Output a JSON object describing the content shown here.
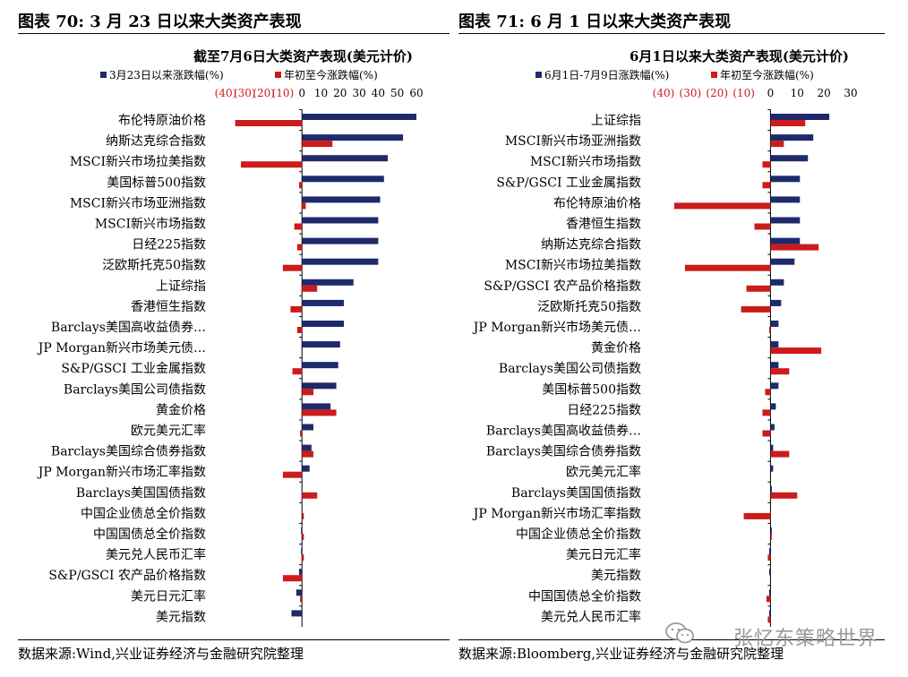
{
  "panels": [
    {
      "figure_title": "图表 70:  3 月 23 日以来大类资产表现",
      "source": "数据来源:Wind,兴业证券经济与金融研究院整理",
      "chart_data": {
        "type": "bar",
        "orientation": "horizontal",
        "title": "截至7月6日大类资产表现(美元计价)",
        "xlim": [
          -40,
          60
        ],
        "xticks": [
          "(40)",
          "(30)",
          "(20)",
          "(10)",
          "0",
          "10",
          "20",
          "30",
          "40",
          "50",
          "60"
        ],
        "colors": {
          "series1": "#1f2a6b",
          "series2": "#cc1b1b",
          "negative_tick": "#cc1b1b"
        },
        "categories": [
          "布伦特原油价格",
          "纳斯达克综合指数",
          "MSCI新兴市场拉美指数",
          "美国标普500指数",
          "MSCI新兴市场亚洲指数",
          "MSCI新兴市场指数",
          "日经225指数",
          "泛欧斯托克50指数",
          "上证综指",
          "香港恒生指数",
          "Barclays美国高收益债券…",
          "JP Morgan新兴市场美元债…",
          "S&P/GSCI 工业金属指数",
          "Barclays美国公司债指数",
          "黄金价格",
          "欧元美元汇率",
          "Barclays美国综合债券指数",
          "JP Morgan新兴市场汇率指数",
          "Barclays美国国债指数",
          "中国企业债总全价指数",
          "中国国债总全价指数",
          "美元兑人民币汇率",
          "S&P/GSCI 农产品价格指数",
          "美元日元汇率",
          "美元指数"
        ],
        "series": [
          {
            "name": "3月23日以来涨跌幅(%)",
            "values": [
              60,
              53,
              45,
              43,
              41,
              40,
              40,
              40,
              27,
              22,
              22,
              20,
              19,
              18,
              15,
              6,
              5,
              4,
              0,
              0,
              -0.5,
              -0.5,
              -1.5,
              -3,
              -5.5
            ]
          },
          {
            "name": "年初至今涨跌幅(%)",
            "values": [
              -35,
              16,
              -32,
              -1.5,
              2,
              -4,
              -2.5,
              -10,
              8,
              -6,
              -2.5,
              0,
              -5,
              6,
              18,
              -1,
              6,
              -10,
              8,
              1,
              1,
              1,
              -10,
              -1,
              0
            ]
          }
        ]
      }
    },
    {
      "figure_title": "图表 71:  6 月 1 日以来大类资产表现",
      "source": "数据来源:Bloomberg,兴业证券经济与金融研究院整理",
      "chart_data": {
        "type": "bar",
        "orientation": "horizontal",
        "title": "6月1日以来大类资产表现(美元计价)",
        "xlim": [
          -40,
          30
        ],
        "xticks": [
          "(40)",
          "(30)",
          "(20)",
          "(10)",
          "0",
          "10",
          "20",
          "30"
        ],
        "colors": {
          "series1": "#1f2a6b",
          "series2": "#cc1b1b",
          "negative_tick": "#cc1b1b"
        },
        "categories": [
          "上证综指",
          "MSCI新兴市场亚洲指数",
          "MSCI新兴市场指数",
          "S&P/GSCI 工业金属指数",
          "布伦特原油价格",
          "香港恒生指数",
          "纳斯达克综合指数",
          "MSCI新兴市场拉美指数",
          "S&P/GSCI 农产品价格指数",
          "泛欧斯托克50指数",
          "JP Morgan新兴市场美元债…",
          "黄金价格",
          "Barclays美国公司债指数",
          "美国标普500指数",
          "日经225指数",
          "Barclays美国高收益债券…",
          "Barclays美国综合债券指数",
          "欧元美元汇率",
          "Barclays美国国债指数",
          "JP Morgan新兴市场汇率指数",
          "中国企业债总全价指数",
          "美元日元汇率",
          "美元指数",
          "中国国债总全价指数",
          "美元兑人民币汇率"
        ],
        "series": [
          {
            "name": "6月1日-7月9日涨跌幅(%)",
            "values": [
              22,
              16,
              14,
              11,
              11,
              11,
              11,
              9,
              5,
              4,
              3,
              3,
              3,
              3,
              2,
              1.5,
              1,
              1,
              0.5,
              0,
              0.5,
              -0.5,
              -0.5,
              -0.5,
              -0.5
            ]
          },
          {
            "name": "年初至今涨跌幅(%)",
            "values": [
              13,
              5,
              -3,
              -3,
              -36,
              -6,
              18,
              -32,
              -9,
              -11,
              -0.5,
              19,
              7,
              -2,
              -3,
              -3,
              7,
              0,
              10,
              -10,
              0.5,
              -1,
              0,
              -1.5,
              -1
            ]
          }
        ]
      }
    }
  ],
  "watermark": "张忆东策略世界"
}
